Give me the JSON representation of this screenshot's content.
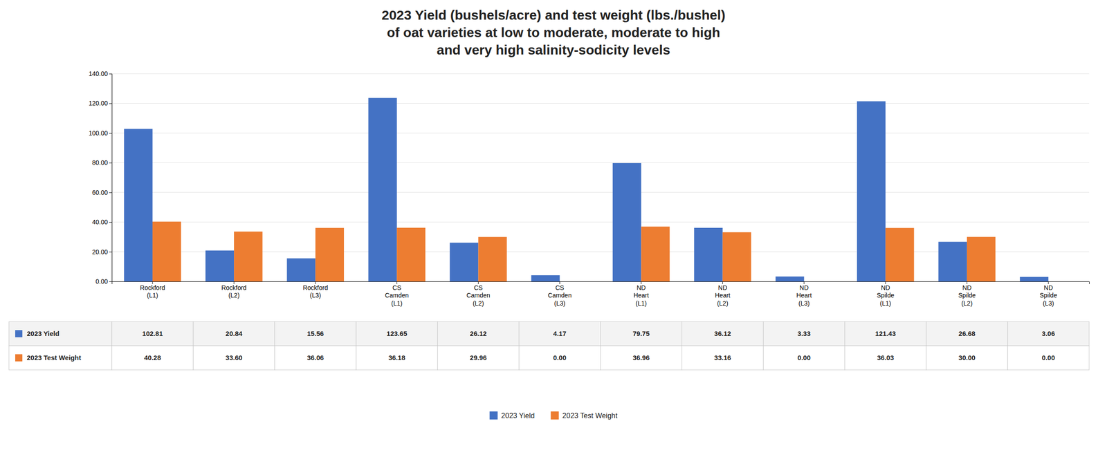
{
  "chart_data": {
    "type": "bar",
    "title": "2023 Yield (bushels/acre) and test weight (lbs./bushel)\nof oat varieties at low to moderate, moderate to high\nand very high salinity-sodicity levels",
    "categories": [
      "Rockford\n(L1)",
      "Rockford\n(L2)",
      "Rockford\n(L3)",
      "CS\nCamden\n(L1)",
      "CS\nCamden\n(L2)",
      "CS\nCamden\n(L3)",
      "ND\nHeart\n(L1)",
      "ND\nHeart\n(L2)",
      "ND\nHeart\n(L3)",
      "ND\nSpilde\n(L1)",
      "ND\nSpilde\n(L2)",
      "ND\nSpilde\n(L3)"
    ],
    "series": [
      {
        "name": "2023 Yield",
        "color": "#4472C4",
        "values": [
          102.81,
          20.84,
          15.56,
          123.65,
          26.12,
          4.17,
          79.75,
          36.12,
          3.33,
          121.43,
          26.68,
          3.06
        ],
        "value_labels": [
          "102.81",
          "20.84",
          "15.56",
          "123.65",
          "26.12",
          "4.17",
          "79.75",
          "36.12",
          "3.33",
          "121.43",
          "26.68",
          "3.06"
        ]
      },
      {
        "name": "2023 Test Weight",
        "color": "#ED7D31",
        "values": [
          40.28,
          33.6,
          36.06,
          36.18,
          29.96,
          0.0,
          36.96,
          33.16,
          0.0,
          36.03,
          30.0,
          0.0
        ],
        "value_labels": [
          "40.28",
          "33.60",
          "36.06",
          "36.18",
          "29.96",
          "0.00",
          "36.96",
          "33.16",
          "0.00",
          "36.03",
          "30.00",
          "0.00"
        ]
      }
    ],
    "ylim": [
      0,
      140
    ],
    "yticks": [
      {
        "value": 0,
        "label": "0.00"
      },
      {
        "value": 20,
        "label": "20.00"
      },
      {
        "value": 40,
        "label": "40.00"
      },
      {
        "value": 60,
        "label": "60.00"
      },
      {
        "value": 80,
        "label": "80.00"
      },
      {
        "value": 100,
        "label": "100.00"
      },
      {
        "value": 120,
        "label": "120.00"
      },
      {
        "value": 140,
        "label": "140.00"
      }
    ],
    "grid": true,
    "legend": "bottom"
  }
}
